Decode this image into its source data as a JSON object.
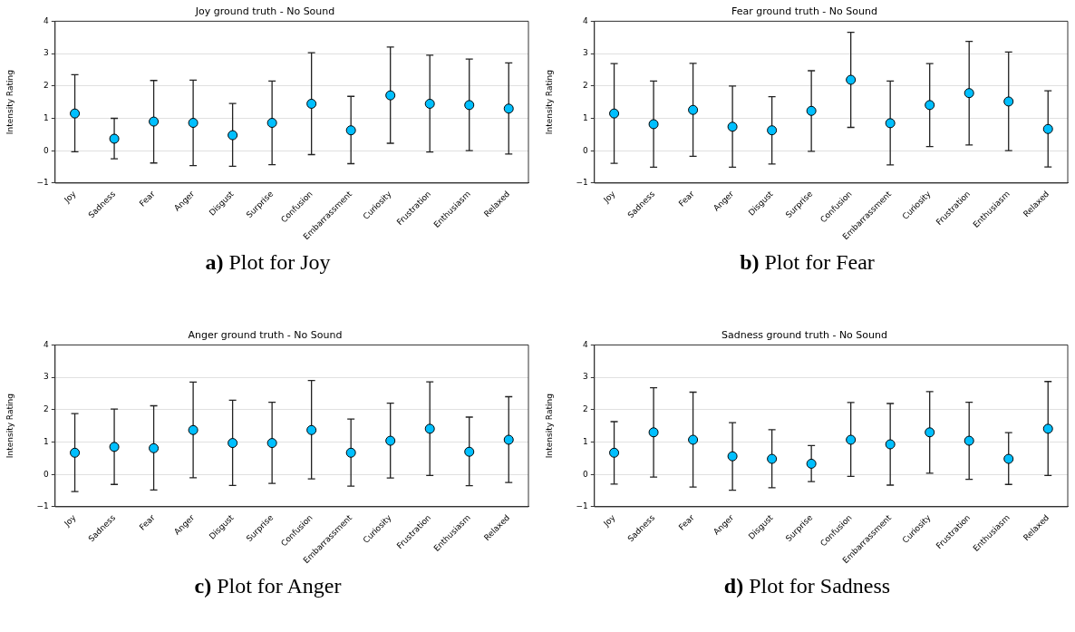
{
  "chart_data": [
    {
      "type": "scatter",
      "title": "Joy ground truth - No Sound",
      "ylabel": "Intensity Rating",
      "categories": [
        "Joy",
        "Sadness",
        "Fear",
        "Anger",
        "Disgust",
        "Surprise",
        "Confusion",
        "Embarrassment",
        "Curiosity",
        "Frustration",
        "Enthusiasm",
        "Relaxed"
      ],
      "series": [
        {
          "color": "#00bfff",
          "values": [
            1.15,
            0.37,
            0.9,
            0.86,
            0.48,
            0.86,
            1.45,
            0.63,
            1.71,
            1.45,
            1.41,
            1.3
          ],
          "errors": [
            [
              -0.03,
              2.35
            ],
            [
              -0.25,
              1.0
            ],
            [
              -0.38,
              2.17
            ],
            [
              -0.46,
              2.18
            ],
            [
              -0.48,
              1.46
            ],
            [
              -0.43,
              2.15
            ],
            [
              -0.12,
              3.03
            ],
            [
              -0.4,
              1.68
            ],
            [
              0.23,
              3.2
            ],
            [
              -0.04,
              2.95
            ],
            [
              0.0,
              2.83
            ],
            [
              -0.1,
              2.71
            ]
          ]
        }
      ],
      "ylim": [
        -1,
        4
      ],
      "yticks": [
        -1,
        0,
        1,
        2,
        3,
        4
      ],
      "grid": "y",
      "marker": "circle",
      "annotations": [
        "a) Plot for Joy"
      ]
    },
    {
      "type": "scatter",
      "title": "Fear ground truth - No Sound",
      "ylabel": "Intensity Rating",
      "categories": [
        "Joy",
        "Sadness",
        "Fear",
        "Anger",
        "Disgust",
        "Surprise",
        "Confusion",
        "Embarrassment",
        "Curiosity",
        "Frustration",
        "Enthusiasm",
        "Relaxed"
      ],
      "series": [
        {
          "color": "#00bfff",
          "values": [
            1.15,
            0.82,
            1.26,
            0.74,
            0.63,
            1.23,
            2.19,
            0.85,
            1.41,
            1.78,
            1.52,
            0.67
          ],
          "errors": [
            [
              -0.39,
              2.69
            ],
            [
              -0.51,
              2.15
            ],
            [
              -0.17,
              2.7
            ],
            [
              -0.51,
              2.0
            ],
            [
              -0.41,
              1.67
            ],
            [
              -0.02,
              2.47
            ],
            [
              0.72,
              3.66
            ],
            [
              -0.44,
              2.15
            ],
            [
              0.13,
              2.69
            ],
            [
              0.18,
              3.38
            ],
            [
              0.0,
              3.05
            ],
            [
              -0.5,
              1.85
            ]
          ]
        }
      ],
      "ylim": [
        -1,
        4
      ],
      "yticks": [
        -1,
        0,
        1,
        2,
        3,
        4
      ],
      "grid": "y",
      "marker": "circle",
      "annotations": [
        "b) Plot for Fear"
      ]
    },
    {
      "type": "scatter",
      "title": "Anger ground truth - No Sound",
      "ylabel": "Intensity Rating",
      "categories": [
        "Joy",
        "Sadness",
        "Fear",
        "Anger",
        "Disgust",
        "Surprise",
        "Confusion",
        "Embarrassment",
        "Curiosity",
        "Frustration",
        "Enthusiasm",
        "Relaxed"
      ],
      "series": [
        {
          "color": "#00bfff",
          "values": [
            0.67,
            0.85,
            0.81,
            1.37,
            0.97,
            0.97,
            1.37,
            0.67,
            1.04,
            1.41,
            0.7,
            1.07
          ],
          "errors": [
            [
              -0.53,
              1.88
            ],
            [
              -0.31,
              2.02
            ],
            [
              -0.48,
              2.12
            ],
            [
              -0.1,
              2.85
            ],
            [
              -0.34,
              2.29
            ],
            [
              -0.28,
              2.23
            ],
            [
              -0.14,
              2.9
            ],
            [
              -0.36,
              1.71
            ],
            [
              -0.11,
              2.2
            ],
            [
              -0.03,
              2.86
            ],
            [
              -0.35,
              1.77
            ],
            [
              -0.25,
              2.4
            ]
          ]
        }
      ],
      "ylim": [
        -1,
        4
      ],
      "yticks": [
        -1,
        0,
        1,
        2,
        3,
        4
      ],
      "grid": "y",
      "marker": "circle",
      "annotations": [
        "c) Plot for Anger"
      ]
    },
    {
      "type": "scatter",
      "title": "Sadness ground truth - No Sound",
      "ylabel": "Intensity Rating",
      "categories": [
        "Joy",
        "Sadness",
        "Fear",
        "Anger",
        "Disgust",
        "Surprise",
        "Confusion",
        "Embarrassment",
        "Curiosity",
        "Frustration",
        "Enthusiasm",
        "Relaxed"
      ],
      "series": [
        {
          "color": "#00bfff",
          "values": [
            0.67,
            1.3,
            1.07,
            0.56,
            0.48,
            0.33,
            1.07,
            0.93,
            1.3,
            1.04,
            0.48,
            1.41
          ],
          "errors": [
            [
              -0.3,
              1.63
            ],
            [
              -0.08,
              2.68
            ],
            [
              -0.39,
              2.54
            ],
            [
              -0.49,
              1.6
            ],
            [
              -0.41,
              1.38
            ],
            [
              -0.22,
              0.89
            ],
            [
              -0.06,
              2.22
            ],
            [
              -0.33,
              2.19
            ],
            [
              0.04,
              2.56
            ],
            [
              -0.15,
              2.23
            ],
            [
              -0.31,
              1.29
            ],
            [
              -0.03,
              2.87
            ]
          ]
        }
      ],
      "ylim": [
        -1,
        4
      ],
      "yticks": [
        -1,
        0,
        1,
        2,
        3,
        4
      ],
      "grid": "y",
      "marker": "circle",
      "annotations": [
        "d) Plot for Sadness"
      ]
    }
  ]
}
